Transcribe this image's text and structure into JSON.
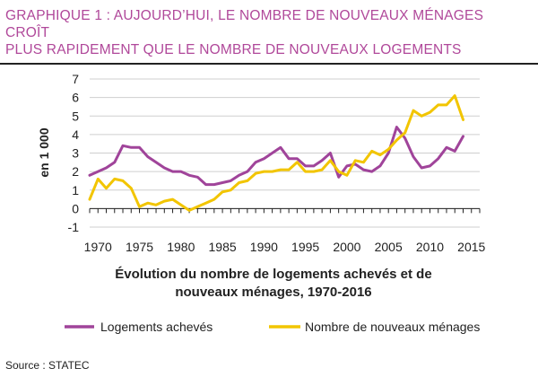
{
  "header": {
    "title_line1": "GRAPHIQUE 1 : AUJOURD’HUI, LE NOMBRE DE NOUVEAUX MÉNAGES CROÎT",
    "title_line2": "PLUS RAPIDEMENT QUE LE NOMBRE DE NOUVEAUX LOGEMENTS"
  },
  "footer": {
    "source": "Source : STATEC"
  },
  "chart_data": {
    "type": "line",
    "title": "Évolution du nombre de logements achevés et de nouveaux ménages, 1970-2016",
    "subtitle_line1": "Évolution du nombre de logements achevés et de",
    "subtitle_line2": "nouveaux ménages, 1970-2016",
    "xlabel": "",
    "ylabel": "en 1 000",
    "xlim": [
      1969,
      2016
    ],
    "ylim": [
      -1,
      7
    ],
    "x_ticks": [
      1970,
      1975,
      1980,
      1985,
      1990,
      1995,
      2000,
      2005,
      2010,
      2015
    ],
    "y_ticks": [
      -1,
      0,
      1,
      2,
      3,
      4,
      5,
      6,
      7
    ],
    "grid": true,
    "legend_position": "bottom",
    "x": [
      1969,
      1970,
      1971,
      1972,
      1973,
      1974,
      1975,
      1976,
      1977,
      1978,
      1979,
      1980,
      1981,
      1982,
      1983,
      1984,
      1985,
      1986,
      1987,
      1988,
      1989,
      1990,
      1991,
      1992,
      1993,
      1994,
      1995,
      1996,
      1997,
      1998,
      1999,
      2000,
      2001,
      2002,
      2003,
      2004,
      2005,
      2006,
      2007,
      2008,
      2009,
      2010,
      2011,
      2012,
      2013,
      2014,
      2015
    ],
    "series": [
      {
        "name": "Logements achevés",
        "color": "#a0449a",
        "values": [
          1.8,
          2.0,
          2.2,
          2.5,
          3.4,
          3.3,
          3.3,
          2.8,
          2.5,
          2.2,
          2.0,
          2.0,
          1.8,
          1.7,
          1.3,
          1.3,
          1.4,
          1.5,
          1.8,
          2.0,
          2.5,
          2.7,
          3.0,
          3.3,
          2.7,
          2.7,
          2.3,
          2.3,
          2.6,
          3.0,
          1.7,
          2.3,
          2.4,
          2.1,
          2.0,
          2.3,
          3.0,
          4.4,
          3.8,
          2.8,
          2.2,
          2.3,
          2.7,
          3.3,
          3.1,
          3.9,
          null
        ]
      },
      {
        "name": "Nombre de nouveaux ménages",
        "color": "#f2c500",
        "values": [
          0.5,
          1.6,
          1.1,
          1.6,
          1.5,
          1.1,
          0.1,
          0.3,
          0.2,
          0.4,
          0.5,
          0.2,
          -0.1,
          0.1,
          0.3,
          0.5,
          0.9,
          1.0,
          1.4,
          1.5,
          1.9,
          2.0,
          2.0,
          2.1,
          2.1,
          2.5,
          2.0,
          2.0,
          2.1,
          2.6,
          2.0,
          1.8,
          2.6,
          2.5,
          3.1,
          2.9,
          3.2,
          3.7,
          4.1,
          5.3,
          5.0,
          5.2,
          5.6,
          5.6,
          6.1,
          4.8,
          null
        ]
      }
    ]
  }
}
